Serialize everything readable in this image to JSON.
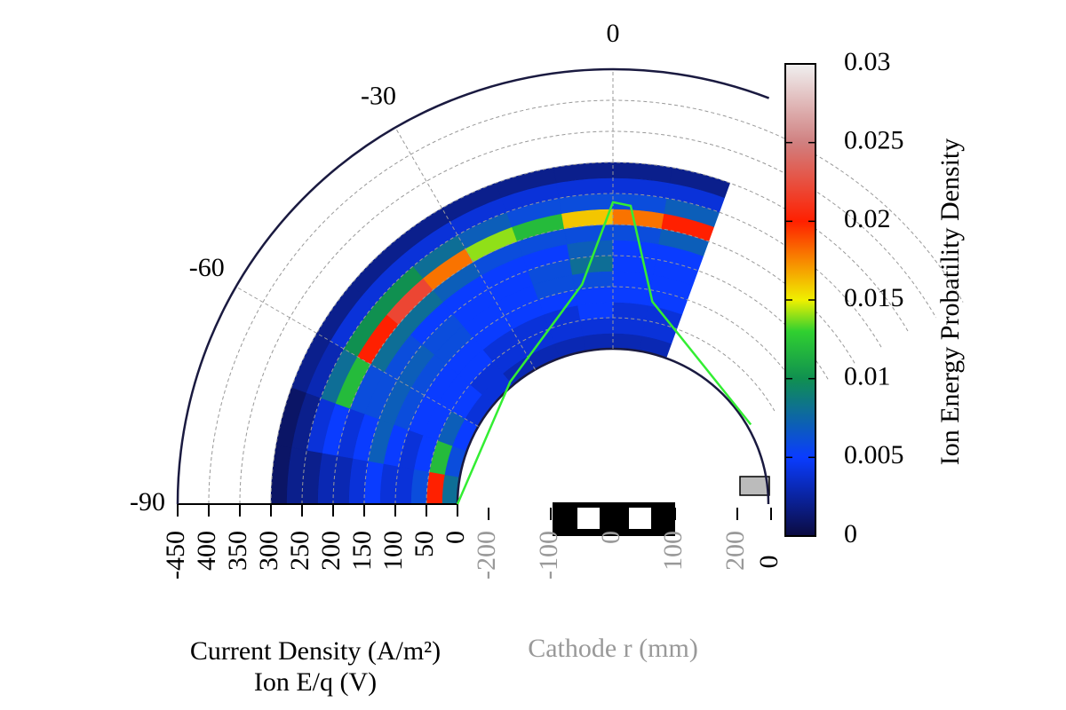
{
  "chart_data": {
    "type": "polar_heatmap",
    "radial_axis_title": "Ion E/q (V)",
    "current_density_title": "Current Density (A/m²)",
    "cathode_axis_title": "Cathode r (mm)",
    "colorbar_title": "Ion Energy Probatility Density",
    "rlim": [
      0,
      450
    ],
    "rticks": [
      {
        "value": 450,
        "label": "-450"
      },
      400,
      350,
      300,
      250,
      200,
      150,
      100,
      50,
      0
    ],
    "angular_ticks": [
      0,
      -30,
      -60,
      -90
    ],
    "cathode_xlim": [
      -200,
      200
    ],
    "cathode_ticks": [
      -200,
      -100,
      0,
      100,
      200
    ],
    "cathode_end_label": "0",
    "grid": true,
    "heatmap": {
      "angle_edges": [
        -90,
        -80,
        -70,
        -60,
        -50,
        -40,
        -30,
        -20,
        -10,
        0,
        10,
        20
      ],
      "energy_edges": [
        0,
        25,
        50,
        75,
        100,
        125,
        150,
        175,
        200,
        225,
        250,
        275,
        300
      ],
      "z": [
        [
          0.008,
          0.006,
          0.005,
          0.004,
          0.004,
          0.003,
          0.003,
          0.003,
          0.003,
          0.003,
          0.003
        ],
        [
          0.02,
          0.012,
          0.007,
          0.005,
          0.004,
          0.004,
          0.004,
          0.004,
          0.004,
          0.004,
          0.004
        ],
        [
          0.006,
          0.005,
          0.005,
          0.005,
          0.005,
          0.004,
          0.004,
          0.004,
          0.005,
          0.004,
          0.004
        ],
        [
          0.004,
          0.004,
          0.005,
          0.005,
          0.005,
          0.005,
          0.005,
          0.005,
          0.005,
          0.005,
          0.005
        ],
        [
          0.004,
          0.005,
          0.006,
          0.006,
          0.006,
          0.005,
          0.005,
          0.006,
          0.006,
          0.005,
          0.005
        ],
        [
          0.005,
          0.007,
          0.007,
          0.007,
          0.006,
          0.005,
          0.005,
          0.006,
          0.008,
          0.005,
          0.005
        ],
        [
          0.004,
          0.005,
          0.006,
          0.006,
          0.005,
          0.005,
          0.005,
          0.005,
          0.007,
          0.005,
          0.005
        ],
        [
          0.003,
          0.004,
          0.006,
          0.008,
          0.008,
          0.007,
          0.006,
          0.006,
          0.006,
          0.006,
          0.007
        ],
        [
          0.003,
          0.005,
          0.012,
          0.02,
          0.022,
          0.018,
          0.014,
          0.012,
          0.016,
          0.018,
          0.02
        ],
        [
          0.002,
          0.004,
          0.008,
          0.01,
          0.01,
          0.008,
          0.007,
          0.006,
          0.006,
          0.006,
          0.007
        ],
        [
          0.002,
          0.002,
          0.003,
          0.004,
          0.004,
          0.004,
          0.004,
          0.004,
          0.004,
          0.004,
          0.004
        ],
        [
          0.001,
          0.001,
          0.002,
          0.002,
          0.002,
          0.002,
          0.002,
          0.002,
          0.002,
          0.002,
          0.002
        ]
      ]
    },
    "colorscale": [
      [
        0,
        "#0b0b40"
      ],
      [
        0.005,
        "#0a3cff"
      ],
      [
        0.01,
        "#109050"
      ],
      [
        0.013,
        "#30d030"
      ],
      [
        0.015,
        "#f0f000"
      ],
      [
        0.02,
        "#ff2000"
      ],
      [
        0.025,
        "#d08080"
      ],
      [
        0.03,
        "#f0f0f0"
      ]
    ],
    "zlim": [
      0,
      0.03
    ],
    "zticks": [
      0,
      0.005,
      0.01,
      0.015,
      0.02,
      0.025,
      0.03
    ],
    "current_density": {
      "color": "#33ee33",
      "angle": [
        -90,
        -40,
        -8,
        0,
        3.4,
        11,
        60
      ],
      "values": [
        0,
        7,
        107,
        236,
        231,
        82,
        6
      ]
    }
  }
}
